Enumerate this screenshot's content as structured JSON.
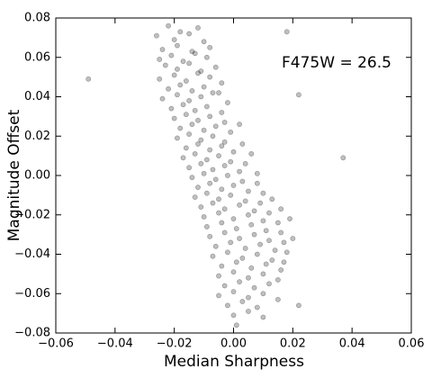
{
  "chart_data": {
    "type": "scatter",
    "x_label": "Median Sharpness",
    "y_label": "Magnitude Offset",
    "annotation": "F475W = 26.5",
    "color": "#000000",
    "alpha": 0.25,
    "xlim": [
      -0.06,
      0.06
    ],
    "ylim": [
      -0.08,
      0.08
    ],
    "xticks": [
      {
        "value": -0.06,
        "label": "−0.06"
      },
      {
        "value": -0.04,
        "label": "−0.04"
      },
      {
        "value": -0.02,
        "label": "−0.02"
      },
      {
        "value": 0,
        "label": "0.00"
      },
      {
        "value": 0.02,
        "label": "0.02"
      },
      {
        "value": 0.04,
        "label": "0.04"
      },
      {
        "value": 0.06,
        "label": "0.06"
      }
    ],
    "yticks": [
      {
        "value": -0.08,
        "label": "−0.08"
      },
      {
        "value": -0.06,
        "label": "−0.06"
      },
      {
        "value": -0.04,
        "label": "−0.04"
      },
      {
        "value": -0.02,
        "label": "−0.02"
      },
      {
        "value": 0,
        "label": "0.00"
      },
      {
        "value": 0.02,
        "label": "0.02"
      },
      {
        "value": 0.04,
        "label": "0.04"
      },
      {
        "value": 0.06,
        "label": "0.06"
      },
      {
        "value": 0.08,
        "label": "0.08"
      }
    ],
    "x": [
      -0.022,
      -0.018,
      -0.012,
      -0.026,
      -0.02,
      -0.015,
      -0.01,
      -0.024,
      -0.019,
      -0.014,
      -0.008,
      -0.025,
      -0.021,
      -0.017,
      -0.013,
      -0.009,
      -0.023,
      -0.019,
      -0.015,
      -0.011,
      -0.006,
      -0.025,
      -0.02,
      -0.016,
      -0.012,
      -0.008,
      -0.004,
      -0.022,
      -0.018,
      -0.014,
      -0.01,
      -0.005,
      -0.024,
      -0.019,
      -0.015,
      -0.011,
      -0.007,
      -0.002,
      -0.021,
      -0.017,
      -0.013,
      -0.009,
      -0.004,
      -0.02,
      -0.016,
      -0.012,
      -0.008,
      -0.003,
      0.002,
      -0.018,
      -0.014,
      -0.01,
      -0.006,
      -0.001,
      -0.019,
      -0.015,
      -0.011,
      -0.007,
      -0.003,
      0.003,
      -0.016,
      -0.012,
      -0.008,
      -0.004,
      0.0,
      0.006,
      -0.017,
      -0.013,
      -0.009,
      -0.005,
      -0.001,
      0.004,
      -0.015,
      -0.011,
      -0.007,
      -0.003,
      0.002,
      0.008,
      -0.014,
      -0.01,
      -0.006,
      -0.002,
      0.003,
      0.008,
      -0.012,
      -0.008,
      -0.004,
      0.0,
      0.005,
      0.01,
      -0.013,
      -0.009,
      -0.005,
      -0.001,
      0.004,
      0.009,
      0.013,
      -0.011,
      -0.007,
      -0.003,
      0.002,
      0.007,
      0.012,
      0.016,
      -0.01,
      -0.005,
      0.0,
      0.005,
      0.01,
      0.015,
      0.019,
      -0.009,
      -0.004,
      0.001,
      0.006,
      0.011,
      0.016,
      -0.008,
      -0.003,
      0.002,
      0.007,
      0.012,
      0.017,
      0.02,
      -0.006,
      -0.001,
      0.004,
      0.009,
      0.014,
      0.018,
      -0.007,
      -0.002,
      0.003,
      0.008,
      0.013,
      0.017,
      -0.004,
      0.001,
      0.006,
      0.011,
      0.016,
      -0.005,
      0.0,
      0.005,
      0.01,
      0.015,
      -0.003,
      0.002,
      0.007,
      0.012,
      -0.005,
      0.0,
      0.005,
      0.01,
      0.015,
      -0.002,
      0.003,
      0.008,
      0.0,
      0.005,
      0.01,
      0.001,
      -0.049,
      0.037,
      0.022,
      0.018,
      0.022
    ],
    "y": [
      0.076,
      0.073,
      0.075,
      0.071,
      0.069,
      0.072,
      0.068,
      0.064,
      0.066,
      0.063,
      0.065,
      0.059,
      0.061,
      0.058,
      0.062,
      0.06,
      0.056,
      0.054,
      0.057,
      0.053,
      0.055,
      0.049,
      0.051,
      0.048,
      0.052,
      0.05,
      0.047,
      0.044,
      0.046,
      0.043,
      0.045,
      0.042,
      0.039,
      0.041,
      0.038,
      0.04,
      0.042,
      0.037,
      0.034,
      0.036,
      0.033,
      0.035,
      0.032,
      0.029,
      0.031,
      0.028,
      0.03,
      0.027,
      0.026,
      0.024,
      0.026,
      0.023,
      0.025,
      0.022,
      0.019,
      0.021,
      0.018,
      0.02,
      0.017,
      0.016,
      0.014,
      0.016,
      0.013,
      0.015,
      0.012,
      0.011,
      0.009,
      0.011,
      0.008,
      0.01,
      0.007,
      0.006,
      0.004,
      0.006,
      0.003,
      0.005,
      0.002,
      0.001,
      -0.001,
      0.001,
      -0.002,
      0.0,
      -0.003,
      -0.004,
      -0.006,
      -0.004,
      -0.007,
      -0.005,
      -0.008,
      -0.009,
      -0.011,
      -0.009,
      -0.012,
      -0.01,
      -0.013,
      -0.014,
      -0.012,
      -0.016,
      -0.014,
      -0.017,
      -0.015,
      -0.018,
      -0.019,
      -0.017,
      -0.021,
      -0.019,
      -0.022,
      -0.02,
      -0.023,
      -0.024,
      -0.022,
      -0.026,
      -0.024,
      -0.027,
      -0.025,
      -0.028,
      -0.029,
      -0.031,
      -0.029,
      -0.032,
      -0.03,
      -0.033,
      -0.034,
      -0.032,
      -0.036,
      -0.034,
      -0.037,
      -0.035,
      -0.038,
      -0.039,
      -0.041,
      -0.039,
      -0.042,
      -0.04,
      -0.043,
      -0.044,
      -0.046,
      -0.044,
      -0.047,
      -0.045,
      -0.048,
      -0.051,
      -0.049,
      -0.052,
      -0.05,
      -0.053,
      -0.056,
      -0.054,
      -0.057,
      -0.055,
      -0.061,
      -0.059,
      -0.062,
      -0.06,
      -0.063,
      -0.066,
      -0.064,
      -0.067,
      -0.071,
      -0.069,
      -0.072,
      -0.076,
      0.049,
      0.009,
      0.041,
      0.073,
      -0.066
    ]
  }
}
